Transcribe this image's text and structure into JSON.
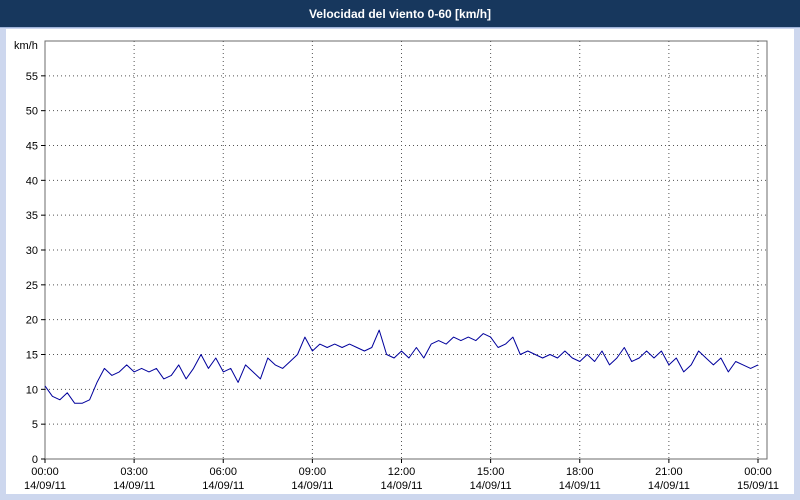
{
  "window": {
    "title": "Velocidad del viento 0-60 [km/h]"
  },
  "colors": {
    "titlebar_bg": "#17375d",
    "titlebar_text": "#ffffff",
    "frame_bg": "#cdd7ee",
    "plot_bg": "#ffffff",
    "plot_border": "#6b6b6b",
    "grid": "#555555",
    "axis_text": "#000000",
    "line": "#00009c"
  },
  "chart_data": {
    "type": "line",
    "title": "Velocidad del viento 0-60 [km/h]",
    "ylabel": "km/h",
    "xlabel": "",
    "ylim": [
      0,
      60
    ],
    "xlim": [
      0,
      24
    ],
    "grid": true,
    "legend": "none",
    "yticks": [
      0,
      5,
      10,
      15,
      20,
      25,
      30,
      35,
      40,
      45,
      50,
      55
    ],
    "xtick_hours": [
      0,
      3,
      6,
      9,
      12,
      15,
      18,
      21,
      24
    ],
    "xticks": [
      {
        "time": "00:00",
        "date": "14/09/11"
      },
      {
        "time": "03:00",
        "date": "14/09/11"
      },
      {
        "time": "06:00",
        "date": "14/09/11"
      },
      {
        "time": "09:00",
        "date": "14/09/11"
      },
      {
        "time": "12:00",
        "date": "14/09/11"
      },
      {
        "time": "15:00",
        "date": "14/09/11"
      },
      {
        "time": "18:00",
        "date": "14/09/11"
      },
      {
        "time": "21:00",
        "date": "14/09/11"
      },
      {
        "time": "00:00",
        "date": "15/09/11"
      }
    ],
    "sample_interval_hours": 0.25,
    "values": [
      10.5,
      9,
      8.5,
      9.5,
      8,
      8,
      8.5,
      11,
      13,
      12,
      12.5,
      13.5,
      12.5,
      13,
      12.5,
      13,
      11.5,
      12,
      13.5,
      11.5,
      13,
      15,
      13,
      14.5,
      12.5,
      13,
      11,
      13.5,
      12.5,
      11.5,
      14.5,
      13.5,
      13,
      14,
      15,
      17.5,
      15.5,
      16.5,
      16,
      16.5,
      16,
      16.5,
      16,
      15.5,
      16,
      18.5,
      15,
      14.5,
      15.5,
      14.5,
      16,
      14.5,
      16.5,
      17,
      16.5,
      17.5,
      17,
      17.5,
      17,
      18,
      17.5,
      16,
      16.5,
      17.5,
      15,
      15.5,
      15,
      14.5,
      15,
      14.5,
      15.5,
      14.5,
      14,
      15,
      14,
      15.5,
      13.5,
      14.5,
      16,
      14,
      14.5,
      15.5,
      14.5,
      15.5,
      13.5,
      14.5,
      12.5,
      13.5,
      15.5,
      14.5,
      13.5,
      14.5,
      12.5,
      14,
      13.5,
      13,
      13.5
    ]
  }
}
